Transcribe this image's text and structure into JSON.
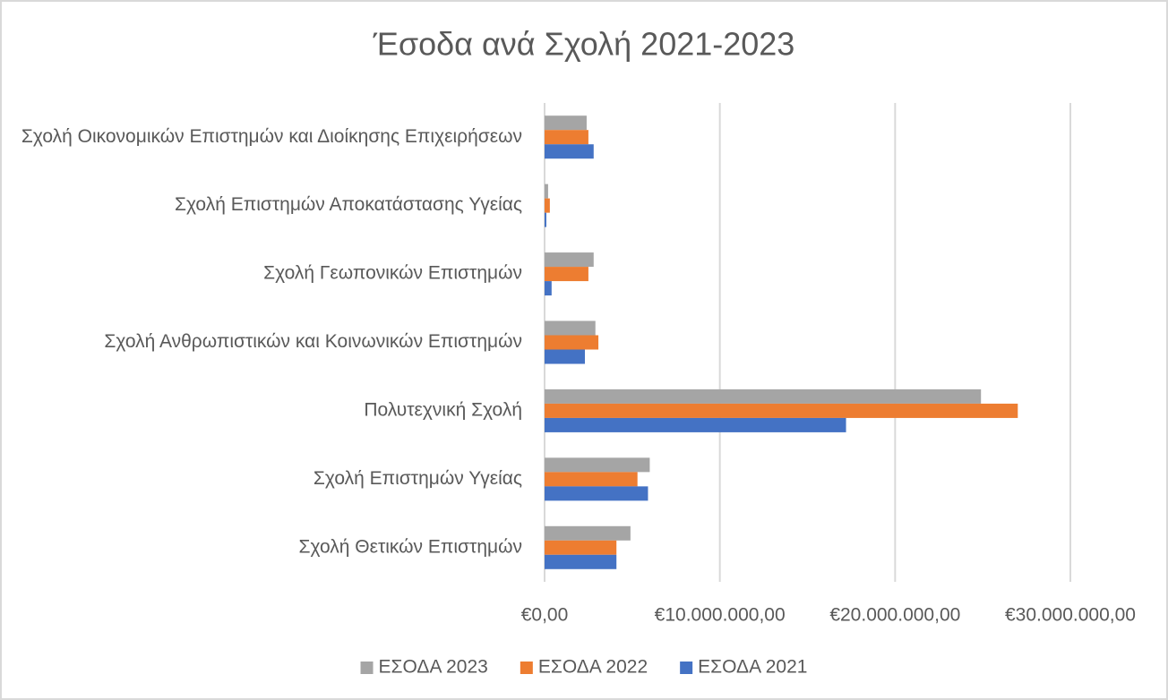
{
  "chart_data": {
    "type": "barh",
    "title": "Έσοδα ανά Σχολή 2021-2023",
    "categories": [
      "Σχολή Οικονομικών Επιστημών και Διοίκησης Επιχειρήσεων",
      "Σχολή Επιστημών Αποκατάστασης Υγείας",
      "Σχολή Γεωπονικών Επιστημών",
      "Σχολή Ανθρωπιστικών και Κοινωνικών Επιστημών",
      "Πολυτεχνική Σχολή",
      "Σχολή Επιστημών Υγείας",
      "Σχολή Θετικών Επιστημών"
    ],
    "series": [
      {
        "name": "ΕΣΟΔΑ 2023",
        "color": "#a5a5a5",
        "values": [
          2400000,
          200000,
          2800000,
          2900000,
          24900000,
          6000000,
          4900000
        ]
      },
      {
        "name": "ΕΣΟΔΑ 2022",
        "color": "#ed7d31",
        "values": [
          2500000,
          300000,
          2500000,
          3070000,
          27000000,
          5300000,
          4100000
        ]
      },
      {
        "name": "ΕΣΟΔΑ 2021",
        "color": "#4472c4",
        "values": [
          2800000,
          100000,
          400000,
          2300000,
          17200000,
          5900000,
          4100000
        ]
      }
    ],
    "xlim": [
      0,
      30000000
    ],
    "xticks": [
      {
        "value": 0,
        "label": "€0,00"
      },
      {
        "value": 10000000,
        "label": "€10.000.000,00"
      },
      {
        "value": 20000000,
        "label": "€20.000.000,00"
      },
      {
        "value": 30000000,
        "label": "€30.000.000,00"
      }
    ],
    "grid": true,
    "legend": "bottom"
  }
}
